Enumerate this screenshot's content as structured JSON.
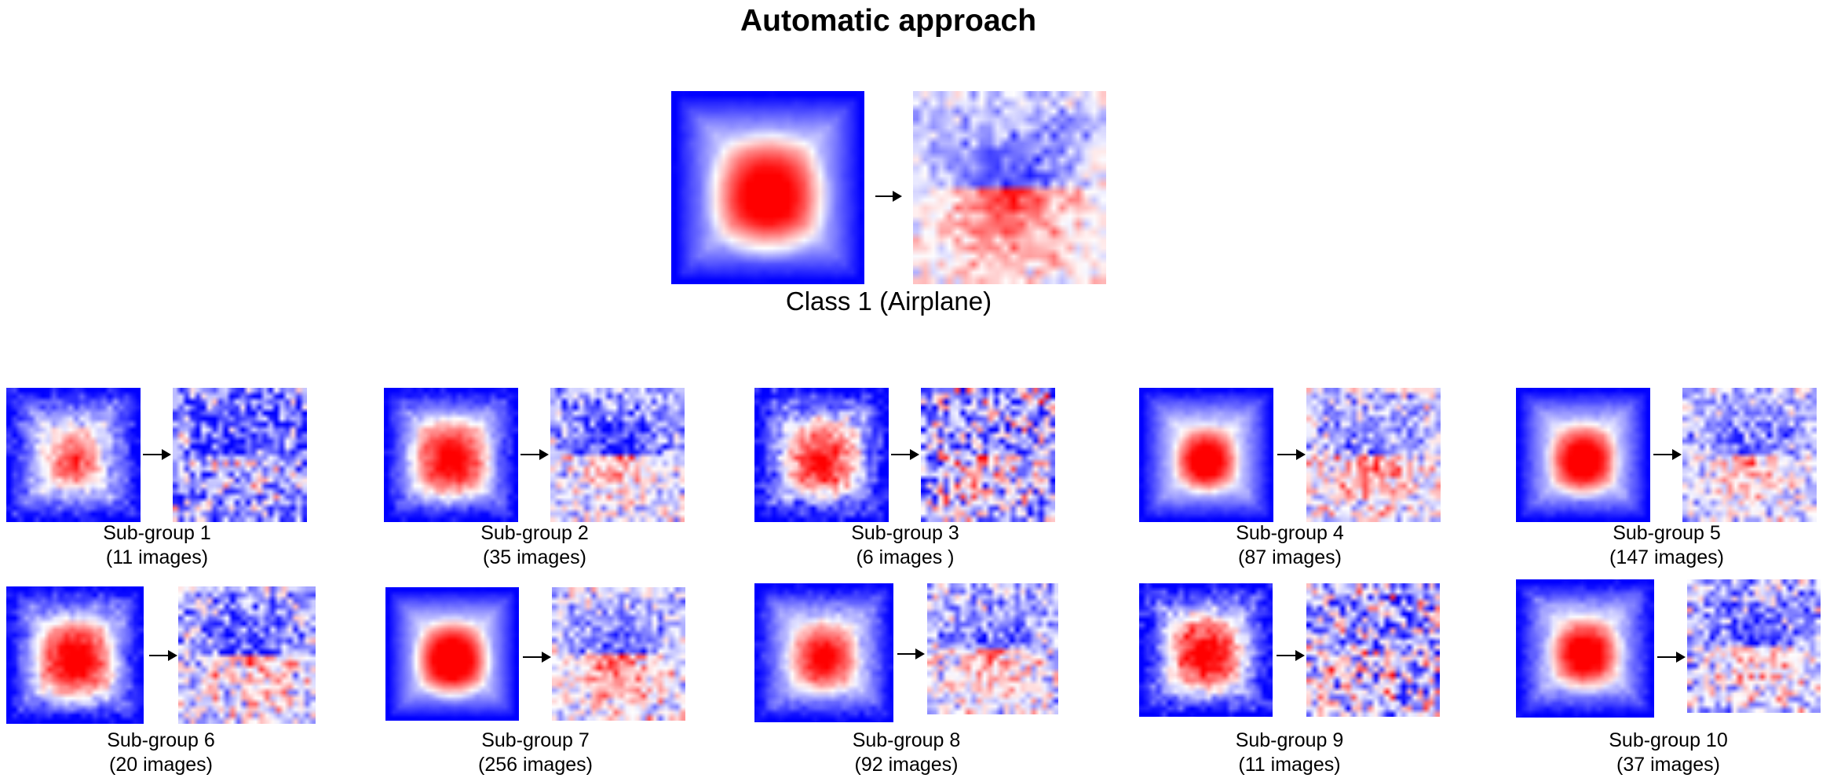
{
  "title": "Automatic approach",
  "main": {
    "label": "Class 1 (Airplane)"
  },
  "colors": {
    "negative": "#0000ff",
    "neutral": "#ffffff",
    "positive": "#ff0000"
  },
  "subgroups": [
    {
      "name": "Sub-group 1",
      "count": "(11 images)"
    },
    {
      "name": "Sub-group 2",
      "count": "(35 images)"
    },
    {
      "name": "Sub-group 3",
      "count": "(6 images )"
    },
    {
      "name": "Sub-group 4",
      "count": "(87 images)"
    },
    {
      "name": "Sub-group 5",
      "count": "(147 images)"
    },
    {
      "name": "Sub-group 6",
      "count": "(20 images)"
    },
    {
      "name": "Sub-group 7",
      "count": "(256 images)"
    },
    {
      "name": "Sub-group 8",
      "count": "(92 images)"
    },
    {
      "name": "Sub-group 9",
      "count": "(11 images)"
    },
    {
      "name": "Sub-group 10",
      "count": "(37 images)"
    }
  ]
}
